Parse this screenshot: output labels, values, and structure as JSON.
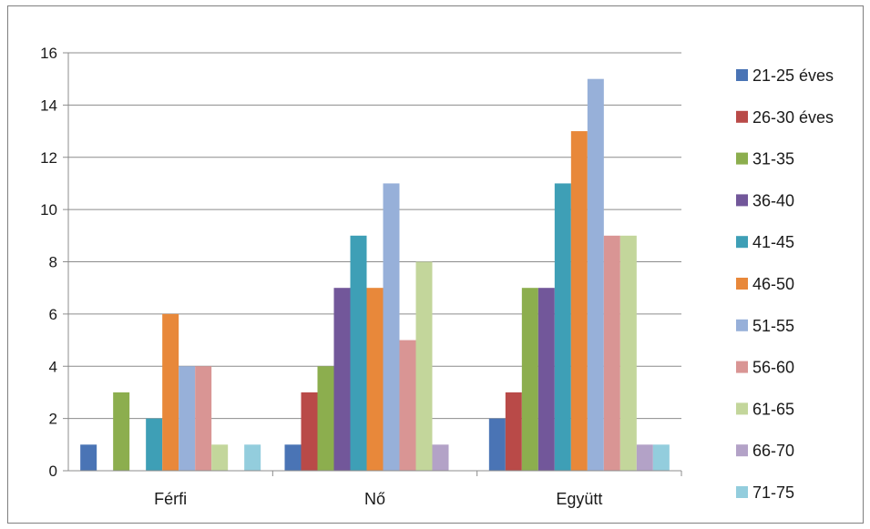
{
  "chart_data": {
    "type": "bar",
    "categories": [
      "Férfi",
      "Nő",
      "Együtt"
    ],
    "series": [
      {
        "name": "21-25 éves",
        "color": "#4a74b5",
        "values": [
          1,
          1,
          2
        ]
      },
      {
        "name": "26-30 éves",
        "color": "#b94a48",
        "values": [
          0,
          3,
          3
        ]
      },
      {
        "name": "31-35",
        "color": "#8cae4e",
        "values": [
          3,
          4,
          7
        ]
      },
      {
        "name": "36-40",
        "color": "#72579a",
        "values": [
          0,
          7,
          7
        ]
      },
      {
        "name": "41-45",
        "color": "#3e9fb6",
        "values": [
          2,
          9,
          11
        ]
      },
      {
        "name": "46-50",
        "color": "#e8883a",
        "values": [
          6,
          7,
          13
        ]
      },
      {
        "name": "51-55",
        "color": "#97b0d9",
        "values": [
          4,
          11,
          15
        ]
      },
      {
        "name": "56-60",
        "color": "#d99594",
        "values": [
          4,
          5,
          9
        ]
      },
      {
        "name": "61-65",
        "color": "#c3d69b",
        "values": [
          1,
          8,
          9
        ]
      },
      {
        "name": "66-70",
        "color": "#b3a2c7",
        "values": [
          0,
          1,
          1
        ]
      },
      {
        "name": "71-75",
        "color": "#93cddd",
        "values": [
          1,
          0,
          1
        ]
      }
    ],
    "ylim": [
      0,
      16
    ],
    "yticks": [
      "0",
      "2",
      "4",
      "6",
      "8",
      "10",
      "12",
      "14",
      "16"
    ],
    "grid": true,
    "legend": "right"
  }
}
